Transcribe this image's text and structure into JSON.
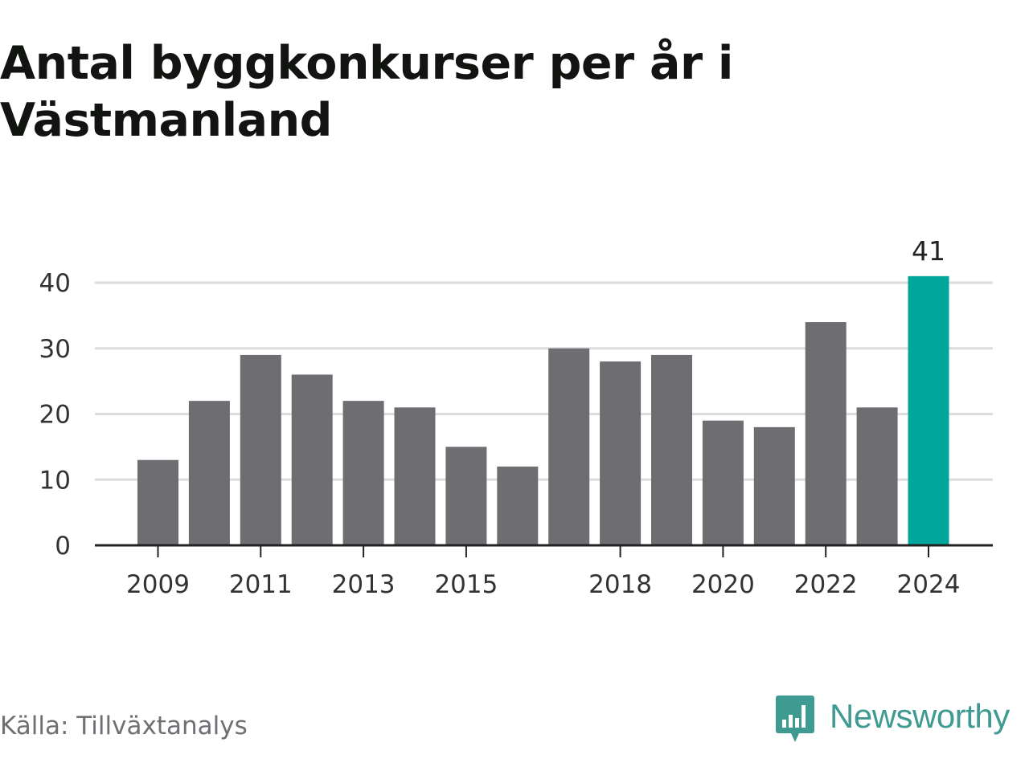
{
  "title": "Antal byggkonkurser per år i Västmanland",
  "source": "Källa: Tillväxtanalys",
  "logo": {
    "text": "Newsworthy",
    "icon": "newsworthy-logo-icon"
  },
  "colors": {
    "bar": "#6e6d72",
    "highlight": "#00a59c",
    "grid": "#dddddd",
    "axis": "#222222",
    "text": "#333333",
    "logo": "#3f9a92"
  },
  "chart_data": {
    "type": "bar",
    "title": "Antal byggkonkurser per år i Västmanland",
    "xlabel": "",
    "ylabel": "",
    "categories": [
      "2009",
      "2010",
      "2011",
      "2012",
      "2013",
      "2014",
      "2015",
      "2016",
      "2017",
      "2018",
      "2019",
      "2020",
      "2021",
      "2022",
      "2023",
      "2024"
    ],
    "values": [
      13,
      22,
      29,
      26,
      22,
      21,
      15,
      12,
      30,
      28,
      29,
      19,
      18,
      34,
      21,
      41
    ],
    "x_tick_labels": [
      "2009",
      "2011",
      "2013",
      "2015",
      "2018",
      "2020",
      "2022",
      "2024"
    ],
    "y_ticks": [
      0,
      10,
      20,
      30,
      40
    ],
    "ylim": [
      0,
      40
    ],
    "grid": true,
    "highlight_category": "2024",
    "data_labels": [
      {
        "category": "2024",
        "text": "41"
      }
    ]
  }
}
